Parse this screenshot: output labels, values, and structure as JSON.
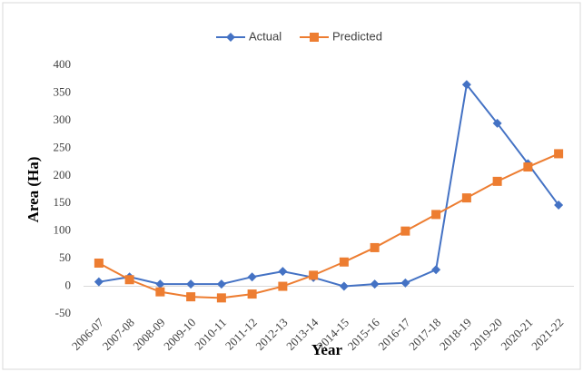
{
  "chart_data": {
    "type": "line",
    "x_label": "Year",
    "y_label": "Area (Ha)",
    "categories": [
      "2006-07",
      "2007-08",
      "2008-09",
      "2009-10",
      "2010-11",
      "2011-12",
      "2012-13",
      "2013-14",
      "2014-15",
      "2015-16",
      "2016-17",
      "2017-18",
      "2018-19",
      "2019-20",
      "2020-21",
      "2021-22"
    ],
    "series": [
      {
        "name": "Actual",
        "color": "#4472c4",
        "marker": "diamond",
        "values": [
          8,
          17,
          4,
          4,
          4,
          17,
          27,
          16,
          0,
          4,
          6,
          30,
          365,
          295,
          222,
          147
        ]
      },
      {
        "name": "Predicted",
        "color": "#ed7d31",
        "marker": "square",
        "values": [
          42,
          12,
          -10,
          -19,
          -21,
          -14,
          0,
          20,
          44,
          70,
          100,
          130,
          160,
          190,
          216,
          240
        ]
      }
    ],
    "ylim": [
      -50,
      400
    ],
    "yticks": [
      -50,
      0,
      50,
      100,
      150,
      200,
      250,
      300,
      350,
      400
    ],
    "grid": false,
    "legend": "top"
  }
}
